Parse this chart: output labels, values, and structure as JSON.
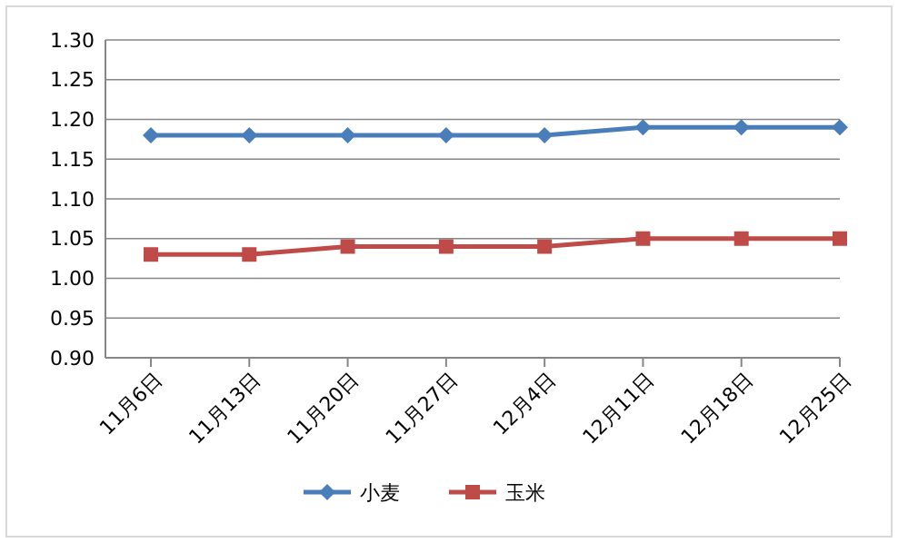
{
  "chart_data": {
    "type": "line",
    "categories": [
      "11月6日",
      "11月13日",
      "11月20日",
      "11月27日",
      "12月4日",
      "12月11日",
      "12月18日",
      "12月25日"
    ],
    "series": [
      {
        "name": "小麦",
        "color": "#4a7ebb",
        "marker": "diamond",
        "values": [
          1.18,
          1.18,
          1.18,
          1.18,
          1.18,
          1.19,
          1.19,
          1.19
        ]
      },
      {
        "name": "玉米",
        "color": "#be4b48",
        "marker": "square",
        "values": [
          1.03,
          1.03,
          1.04,
          1.04,
          1.04,
          1.05,
          1.05,
          1.05
        ]
      }
    ],
    "ylim": [
      0.9,
      1.3
    ],
    "yticks": [
      {
        "value": 0.9,
        "label": "0.90"
      },
      {
        "value": 0.95,
        "label": "0.95"
      },
      {
        "value": 1.0,
        "label": "1.00"
      },
      {
        "value": 1.05,
        "label": "1.05"
      },
      {
        "value": 1.1,
        "label": "1.10"
      },
      {
        "value": 1.15,
        "label": "1.15"
      },
      {
        "value": 1.2,
        "label": "1.20"
      },
      {
        "value": 1.25,
        "label": "1.25"
      },
      {
        "value": 1.3,
        "label": "1.30"
      }
    ],
    "grid": "y",
    "legend": "bottom",
    "line_style": "solid"
  }
}
